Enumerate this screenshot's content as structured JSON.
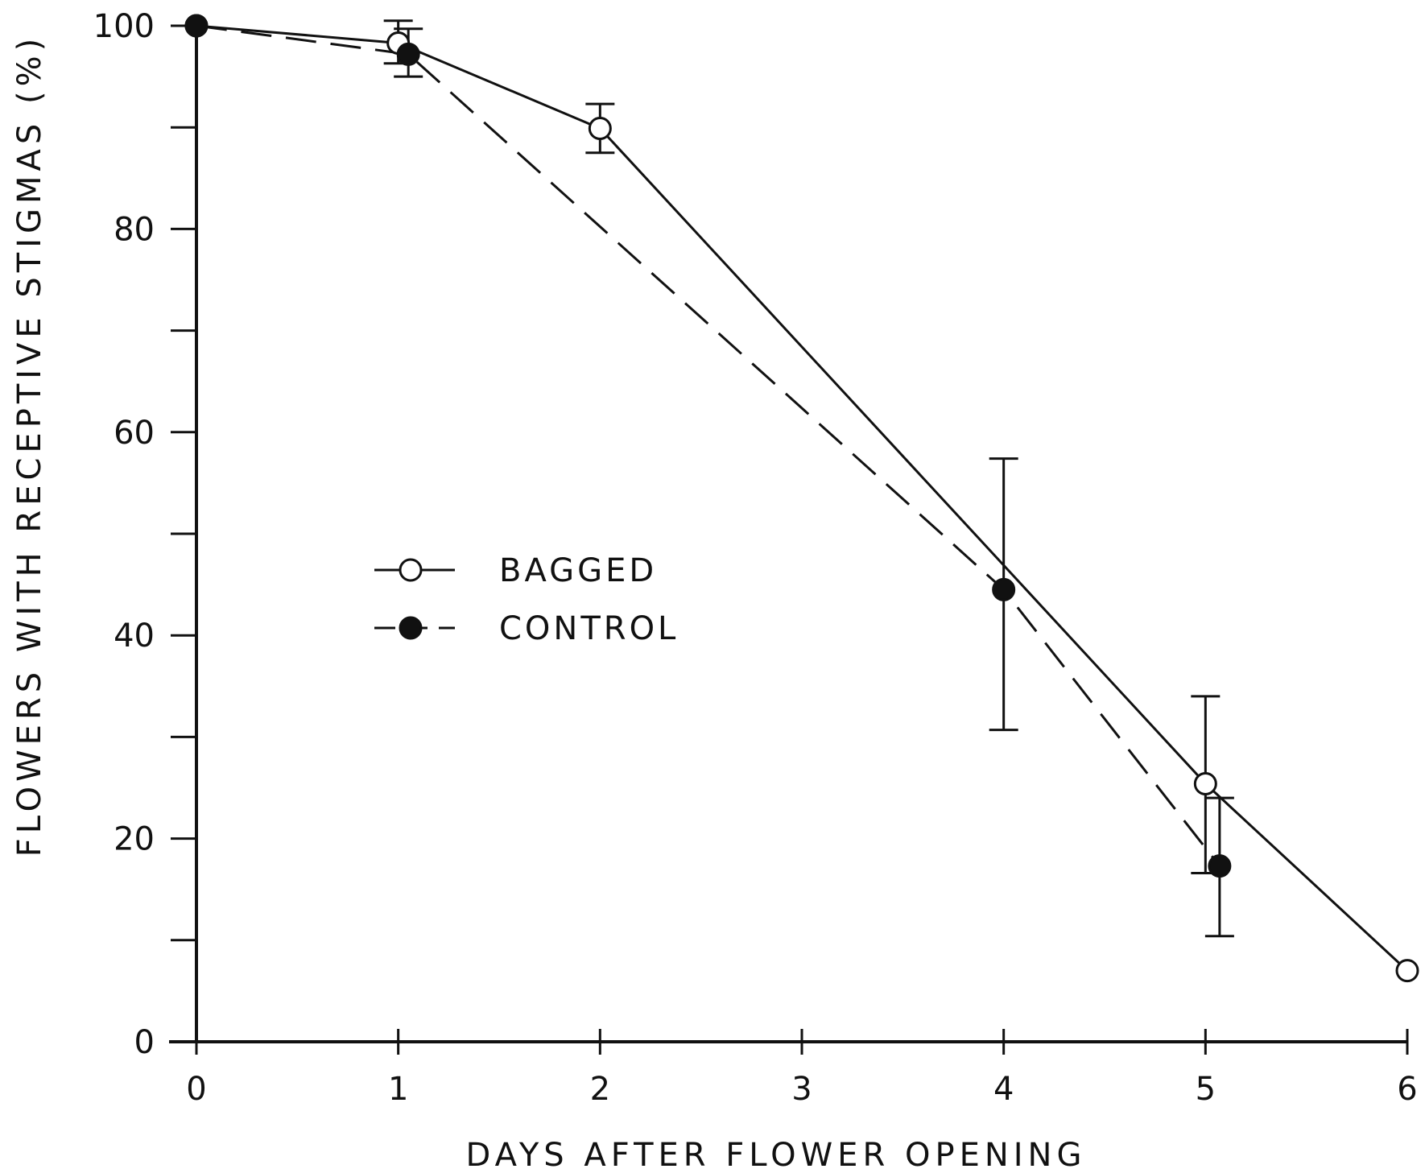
{
  "chart_data": {
    "type": "line",
    "title": "",
    "xlabel": "DAYS AFTER FLOWER OPENING",
    "ylabel": "FLOWERS WITH RECEPTIVE STIGMAS (%)",
    "xlim": [
      0,
      6
    ],
    "ylim": [
      0,
      100
    ],
    "xticks": [
      0,
      1,
      2,
      3,
      4,
      5,
      6
    ],
    "xtick_labels": [
      "0",
      "1",
      "2",
      "3",
      "4",
      "5",
      "6"
    ],
    "yticks": [
      0,
      10,
      20,
      30,
      40,
      50,
      60,
      70,
      80,
      90,
      100
    ],
    "ytick_labels": [
      "0",
      "",
      "20",
      "",
      "40",
      "",
      "60",
      "",
      "80",
      "",
      "100"
    ],
    "grid": false,
    "legend_position": "center-left",
    "series": [
      {
        "name": "BAGGED",
        "marker": "open-circle",
        "line_style": "solid",
        "points": [
          {
            "x": 0,
            "y": 100
          },
          {
            "x": 1,
            "y": 98.3,
            "err_low": 96.3,
            "err_high": 100.5
          },
          {
            "x": 2,
            "y": 89.9,
            "err_low": 87.5,
            "err_high": 92.3
          },
          {
            "x": 5,
            "y": 25.4,
            "err_low": 16.6,
            "err_high": 34.0
          },
          {
            "x": 6,
            "y": 7.0
          }
        ]
      },
      {
        "name": "CONTROL",
        "marker": "filled-circle",
        "line_style": "dashed",
        "points": [
          {
            "x": 0,
            "y": 100
          },
          {
            "x": 1.05,
            "y": 97.2,
            "err_low": 95.0,
            "err_high": 99.7
          },
          {
            "x": 4,
            "y": 44.5,
            "err_low": 30.7,
            "err_high": 57.4
          },
          {
            "x": 5.07,
            "y": 17.3,
            "err_low": 10.4,
            "err_high": 24.0
          }
        ]
      }
    ]
  }
}
